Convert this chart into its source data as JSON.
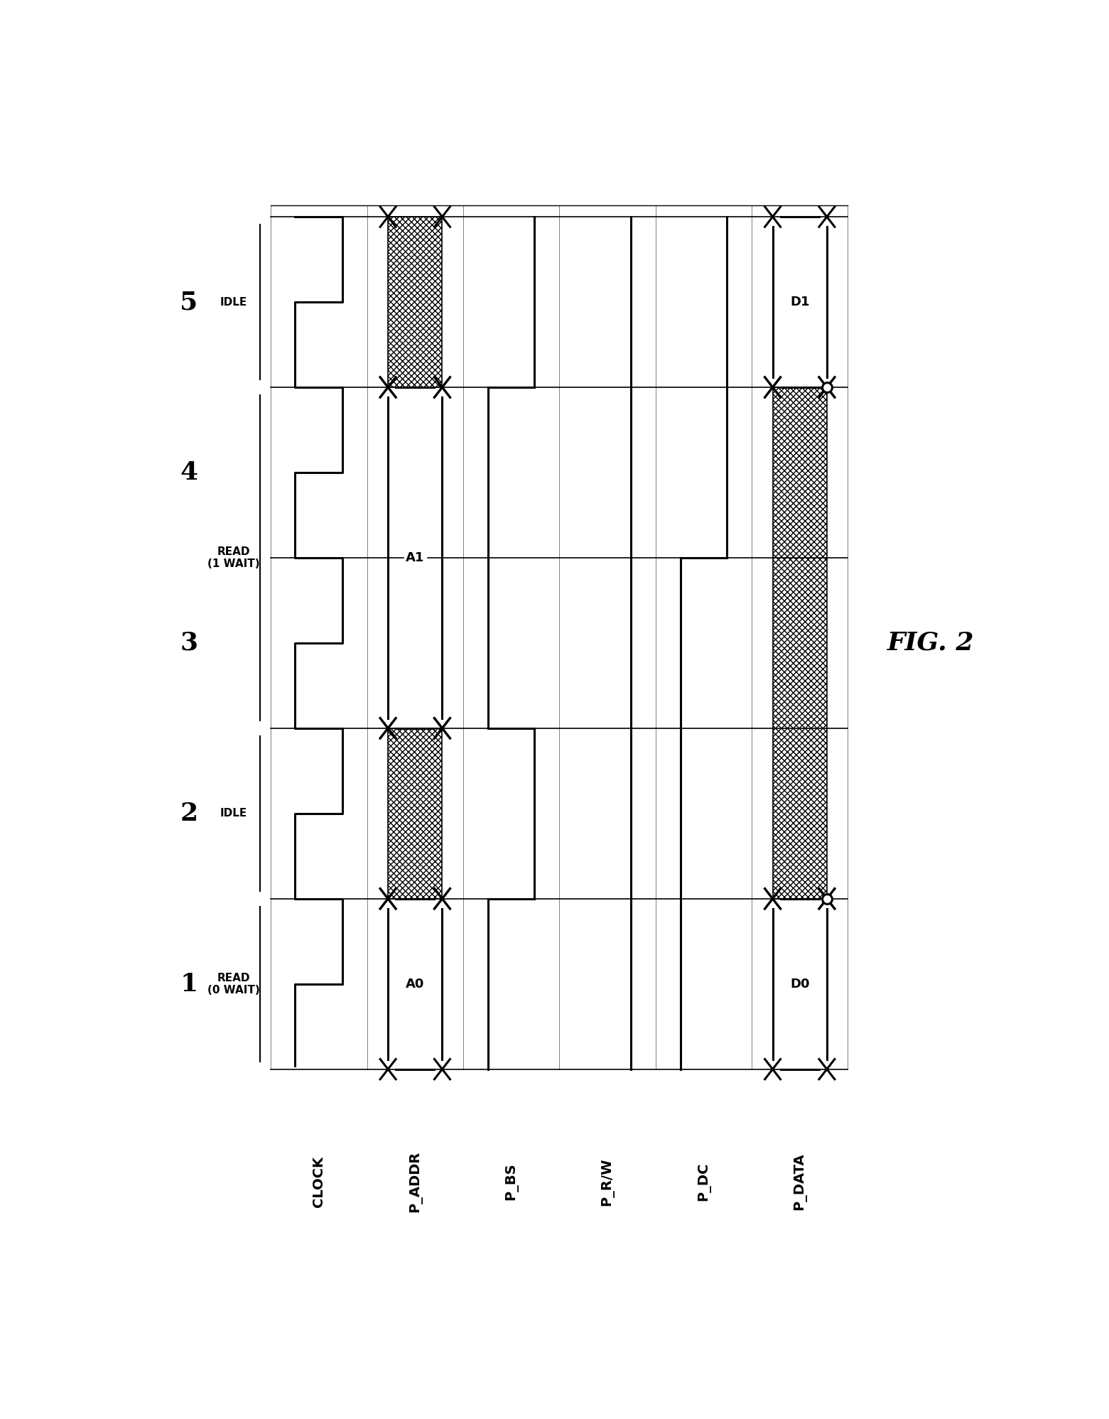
{
  "fig_width": 15.61,
  "fig_height": 19.97,
  "background_color": "#ffffff",
  "signal_names": [
    "CLOCK",
    "P_ADDR",
    "P_BS",
    "P_R/W",
    "P_DC",
    "P_DATA"
  ],
  "cycle_numbers": [
    "1",
    "2",
    "3",
    "4",
    "5"
  ],
  "state_annotations": [
    {
      "cycle": 1,
      "text": "READ\n(0 WAIT)"
    },
    {
      "cycle": 2,
      "text": "IDLE"
    },
    {
      "cycle": 3,
      "text": "READ\n(1 WAIT)"
    },
    {
      "cycle": 5,
      "text": "IDLE"
    }
  ],
  "fig_label": "FIG. 2",
  "line_width": 2.2,
  "black": "#000000"
}
